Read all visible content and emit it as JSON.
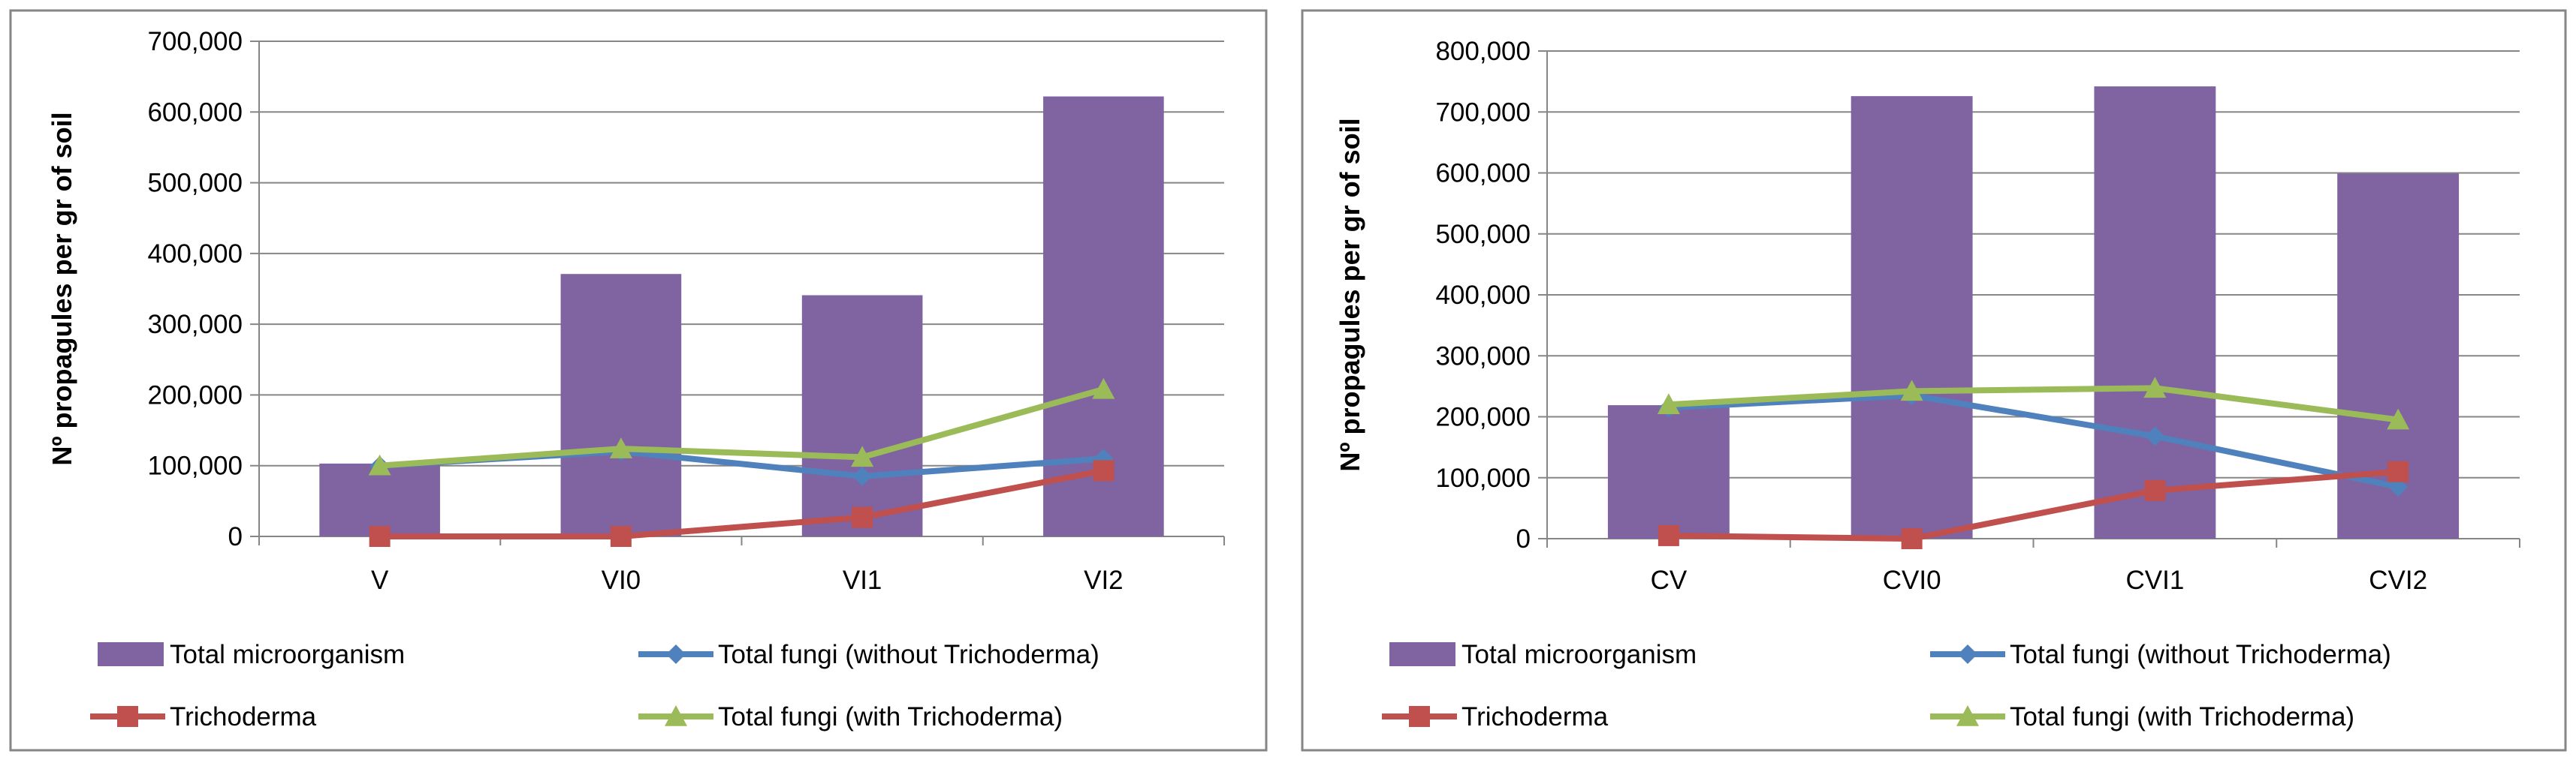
{
  "colors": {
    "bar": "#8064A2",
    "fungi_without": "#4F81BD",
    "trichoderma": "#C0504D",
    "fungi_with": "#9BBB59",
    "grid": "#868686",
    "border": "#868686",
    "text": "#000000"
  },
  "chart_data": [
    {
      "type": "bar",
      "title": "",
      "xlabel": "",
      "ylabel": "Nº propagules per gr of soil",
      "ylim": [
        0,
        700000
      ],
      "yticks": [
        0,
        100000,
        200000,
        300000,
        400000,
        500000,
        600000,
        700000
      ],
      "ytick_labels": [
        "0",
        "100,000",
        "200,000",
        "300,000",
        "400,000",
        "500,000",
        "600,000",
        "700,000"
      ],
      "categories": [
        "V",
        "VI0",
        "VI1",
        "VI2"
      ],
      "grid": true,
      "legend_position": "bottom",
      "series": [
        {
          "name": "Total microorganism",
          "kind": "bar",
          "marker": "none",
          "values": [
            103000,
            371000,
            341000,
            622000
          ]
        },
        {
          "name": "Total fungi (without Trichoderma)",
          "kind": "line",
          "marker": "diamond",
          "values": [
            100000,
            120000,
            85000,
            110000
          ]
        },
        {
          "name": "Trichoderma",
          "kind": "line",
          "marker": "square",
          "values": [
            0,
            0,
            27000,
            93000
          ]
        },
        {
          "name": "Total fungi (with Trichoderma)",
          "kind": "line",
          "marker": "triangle",
          "values": [
            100000,
            124000,
            112000,
            208000
          ]
        }
      ],
      "legend_order": [
        0,
        1,
        2,
        3
      ]
    },
    {
      "type": "bar",
      "title": "",
      "xlabel": "",
      "ylabel": "Nº propagules per gr of soil",
      "ylim": [
        0,
        800000
      ],
      "yticks": [
        0,
        100000,
        200000,
        300000,
        400000,
        500000,
        600000,
        700000,
        800000
      ],
      "ytick_labels": [
        "0",
        "100,000",
        "200,000",
        "300,000",
        "400,000",
        "500,000",
        "600,000",
        "700,000",
        "800,000"
      ],
      "categories": [
        "CV",
        "CVI0",
        "CVI1",
        "CVI2"
      ],
      "grid": true,
      "legend_position": "bottom",
      "series": [
        {
          "name": "Total microorganism",
          "kind": "bar",
          "marker": "none",
          "values": [
            219000,
            726000,
            742000,
            599000
          ]
        },
        {
          "name": "Total fungi (without Trichoderma)",
          "kind": "line",
          "marker": "diamond",
          "values": [
            215000,
            235000,
            168000,
            85000
          ]
        },
        {
          "name": "Trichoderma",
          "kind": "line",
          "marker": "square",
          "values": [
            5000,
            0,
            79000,
            110000
          ]
        },
        {
          "name": "Total fungi (with Trichoderma)",
          "kind": "line",
          "marker": "triangle",
          "values": [
            220000,
            242000,
            247000,
            195000
          ]
        }
      ],
      "legend_order": [
        0,
        1,
        2,
        3
      ]
    }
  ]
}
